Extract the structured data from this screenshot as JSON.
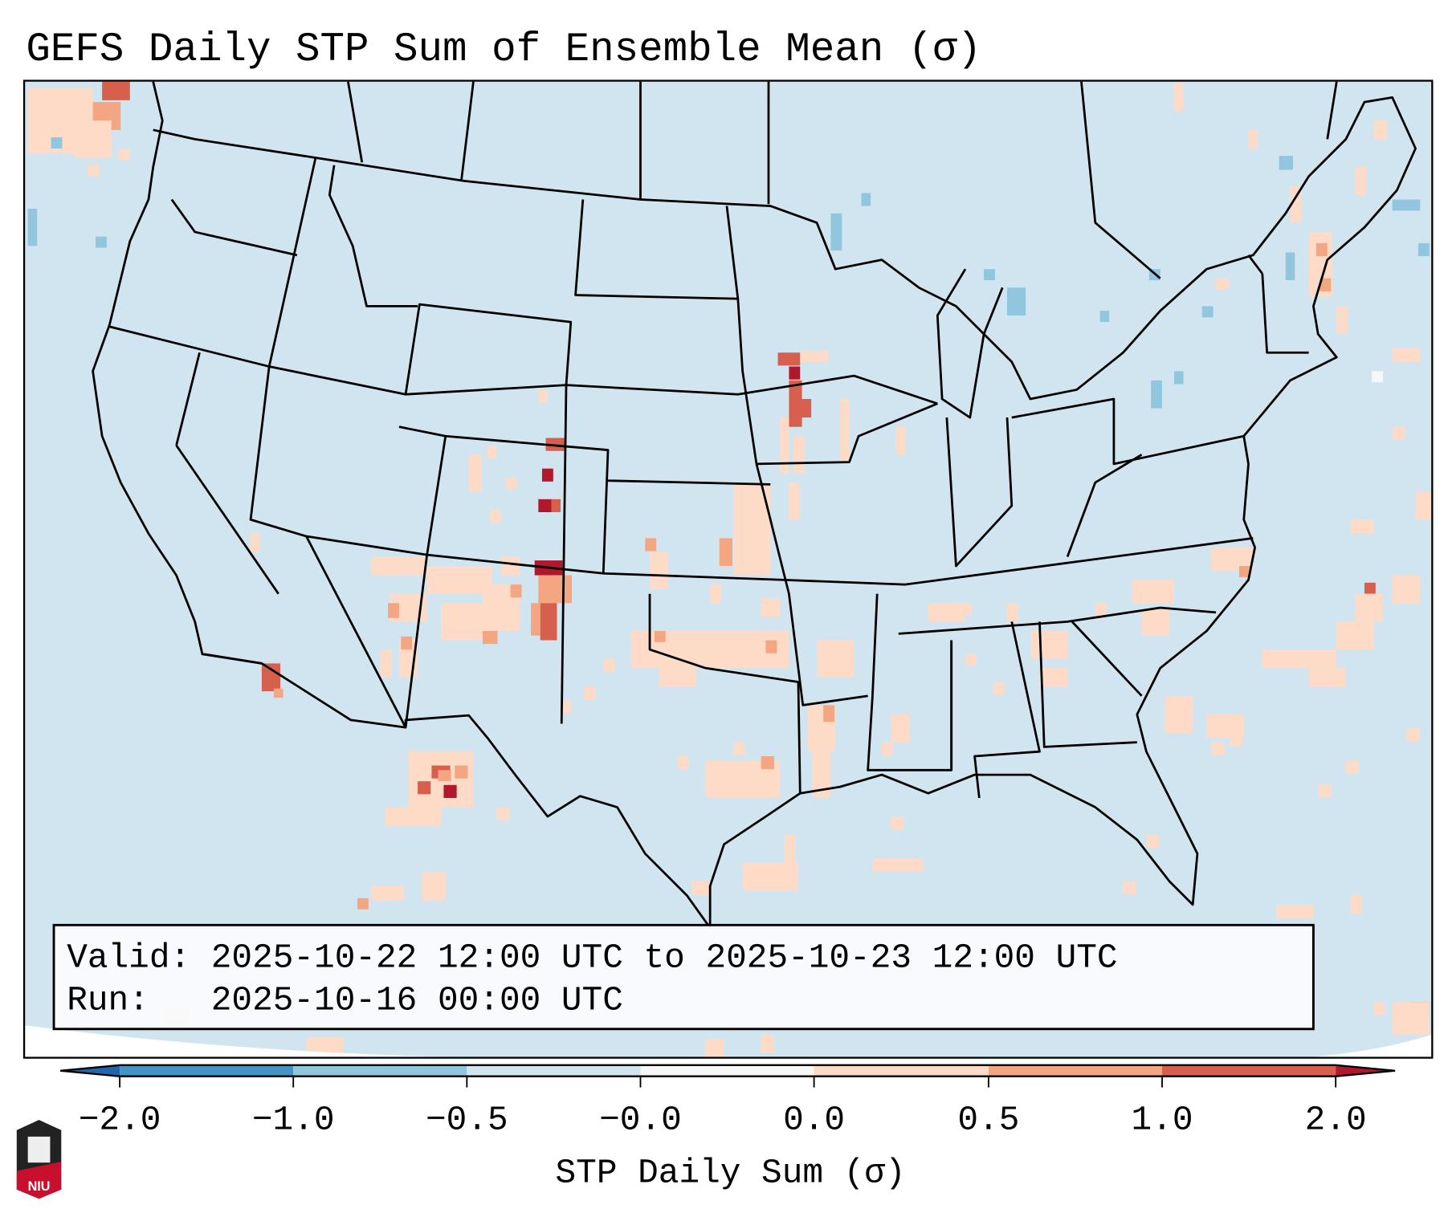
{
  "title": "GEFS Daily STP Sum of Ensemble Mean (σ)",
  "info_box": {
    "valid_line": "Valid: 2025-10-22 12:00 UTC to 2025-10-23 12:00 UTC",
    "run_line": "Run:   2025-10-16 00:00 UTC"
  },
  "colorbar": {
    "label": "STP Daily Sum (σ)",
    "ticks": [
      "−2.0",
      "−1.0",
      "−0.5",
      "−0.0",
      "0.0",
      "0.5",
      "1.0",
      "2.0"
    ],
    "colors": {
      "under": "#2166ac",
      "levels": [
        "#4393c3",
        "#92c5de",
        "#d1e5f0",
        "#f7f7f7",
        "#fddbc7",
        "#f4a582",
        "#d6604d"
      ],
      "over": "#b2182b"
    }
  },
  "map": {
    "background": "#d1e5f0",
    "level_colors": {
      "-1": "#92c5de",
      "0": "#f7f7f7",
      "1": "#fddbc7",
      "2": "#f4a582",
      "3": "#d6604d",
      "4": "#b2182b"
    }
  },
  "logo": {
    "text": "NIU"
  }
}
